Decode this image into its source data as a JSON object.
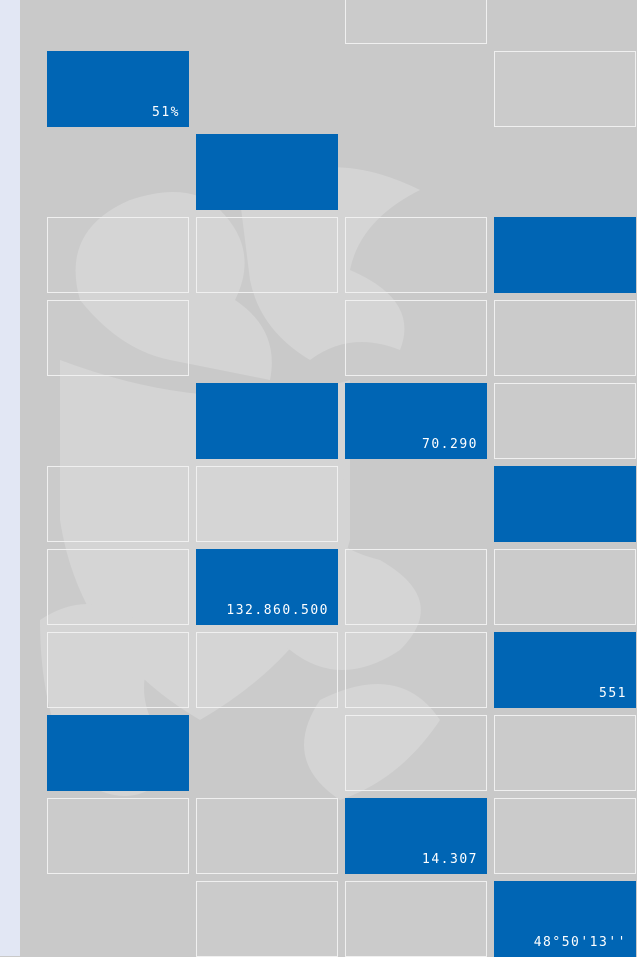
{
  "tile_labels": [
    "51%",
    "70.290",
    "132.860.500",
    "551",
    "14.307",
    "48°50'13''"
  ]
}
